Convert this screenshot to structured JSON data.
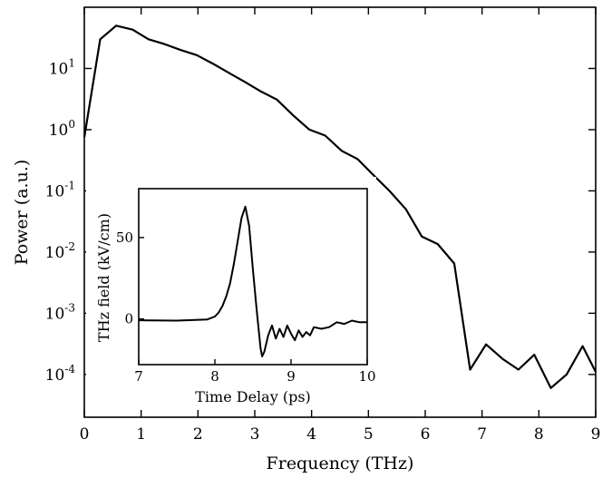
{
  "chart_data": [
    {
      "type": "line",
      "title": "",
      "xlabel": "Frequency (THz)",
      "ylabel": "Power (a.u.)",
      "xlim": [
        0,
        9
      ],
      "ylim": [
        2e-05,
        100
      ],
      "yscale": "log",
      "xticks": [
        "0",
        "1",
        "2",
        "3",
        "4",
        "5",
        "6",
        "7",
        "8",
        "9"
      ],
      "yticks": [
        {
          "base": "10",
          "exp": "1",
          "value": 10
        },
        {
          "base": "10",
          "exp": "0",
          "value": 1
        },
        {
          "base": "10",
          "exp": "-1",
          "value": 0.1
        },
        {
          "base": "10",
          "exp": "-2",
          "value": 0.01
        },
        {
          "base": "10",
          "exp": "-3",
          "value": 0.001
        },
        {
          "base": "10",
          "exp": "-4",
          "value": 0.0001
        }
      ],
      "grid": false,
      "legend": "none",
      "series": [
        {
          "x": [
            0,
            0.28,
            0.56,
            0.85,
            1.13,
            1.41,
            1.7,
            1.98,
            2.26,
            2.54,
            2.83,
            3.11,
            3.39,
            3.68,
            3.96,
            4.24,
            4.53,
            4.81,
            5.09,
            5.37,
            5.66,
            5.94,
            6.22,
            6.51,
            6.79,
            7.07,
            7.36,
            7.64,
            7.92,
            8.21,
            8.49,
            8.77,
            9.0
          ],
          "y": [
            0.75,
            30,
            50,
            43,
            30,
            25,
            20,
            16.5,
            12,
            8.5,
            6,
            4.2,
            3.1,
            1.7,
            1.0,
            0.8,
            0.45,
            0.33,
            0.18,
            0.1,
            0.05,
            0.018,
            0.0135,
            0.0065,
            0.00012,
            0.00031,
            0.00018,
            0.00012,
            0.00021,
            6e-05,
            0.0001,
            0.00029,
            0.00011
          ]
        }
      ]
    },
    {
      "type": "line",
      "title": "",
      "xlabel": "Time Delay (ps)",
      "ylabel": "THz field (kV/cm)",
      "xlim": [
        7,
        10
      ],
      "ylim": [
        -28,
        80
      ],
      "xticks": [
        "7",
        "8",
        "9",
        "10"
      ],
      "yticks": [
        {
          "label": "0",
          "value": 0
        },
        {
          "label": "50",
          "value": 50
        }
      ],
      "grid": false,
      "legend": "none",
      "series": [
        {
          "x": [
            7.0,
            7.5,
            7.9,
            8.0,
            8.05,
            8.1,
            8.15,
            8.2,
            8.25,
            8.3,
            8.35,
            8.4,
            8.45,
            8.5,
            8.55,
            8.6,
            8.62,
            8.65,
            8.7,
            8.75,
            8.8,
            8.85,
            8.9,
            8.95,
            9.0,
            9.05,
            9.1,
            9.15,
            9.2,
            9.25,
            9.3,
            9.4,
            9.5,
            9.6,
            9.7,
            9.8,
            9.9,
            10.0
          ],
          "y": [
            -0.8,
            -1,
            -0.3,
            1.5,
            4,
            8,
            14,
            22,
            34,
            48,
            62,
            69,
            57,
            30,
            5,
            -18,
            -23,
            -20,
            -10,
            -4,
            -12,
            -6,
            -11,
            -4,
            -9,
            -13,
            -7,
            -11,
            -8,
            -10,
            -5,
            -6,
            -5,
            -2,
            -3,
            -1,
            -2,
            -2
          ]
        }
      ]
    }
  ]
}
